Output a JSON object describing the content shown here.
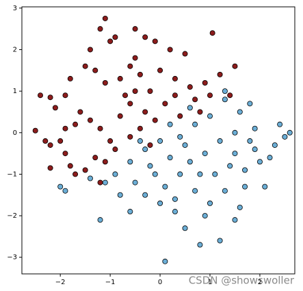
{
  "chart_data": {
    "type": "scatter",
    "xlim": [
      -2.77,
      2.7
    ],
    "ylim": [
      -3.4,
      3.03
    ],
    "xticks": [
      {
        "value": -2,
        "label": "−2"
      },
      {
        "value": -1,
        "label": "−1"
      },
      0,
      1,
      2
    ],
    "yticks": [
      {
        "value": -3,
        "label": "−3"
      },
      {
        "value": -2,
        "label": "−2"
      },
      {
        "value": -1,
        "label": "−1"
      },
      0,
      1,
      2,
      3
    ],
    "annotation": "CSDN @showswoller",
    "series": [
      {
        "color": "#8c1c1c",
        "x": [
          -2.5,
          -2.3,
          -2.2,
          -2.2,
          -2.0,
          -1.9,
          -1.8,
          -1.7,
          -2.1,
          -2.2,
          -1.9,
          -1.8,
          -1.5,
          -1.4,
          -1.2,
          -1.0,
          -0.9,
          -0.5,
          -0.3,
          -0.1,
          1.05,
          -0.5,
          -1.3,
          -1.1,
          -0.8,
          -0.6,
          -0.4,
          -0.2,
          0.0,
          0.3,
          0.6,
          0.9,
          1.2,
          1.5,
          1.4,
          -1.6,
          -1.4,
          -1.2,
          -1.0,
          -0.8,
          -0.6,
          -0.3,
          0.1,
          0.4,
          0.7,
          1.0,
          -1.3,
          -1.1,
          -0.9,
          -0.6,
          -0.4,
          -0.2,
          -1.5,
          -1.2,
          -2.4,
          -1.7,
          -1.9,
          -0.7,
          -0.5,
          -0.1,
          0.5,
          0.2,
          -1.1,
          0.3,
          0.8
        ],
        "values": [
          0.05,
          -0.2,
          -0.3,
          -0.85,
          -0.2,
          -0.5,
          -0.8,
          -1.0,
          0.6,
          0.85,
          0.9,
          1.3,
          1.6,
          2.0,
          2.5,
          2.2,
          2.3,
          2.5,
          2.3,
          2.2,
          2.4,
          1.8,
          1.5,
          1.2,
          1.3,
          1.6,
          1.4,
          1.0,
          1.5,
          1.3,
          1.1,
          1.2,
          1.4,
          1.6,
          0.9,
          0.5,
          0.3,
          0.1,
          -0.2,
          0.4,
          0.7,
          0.5,
          0.7,
          0.4,
          0.8,
          0.9,
          -0.6,
          -0.7,
          -0.4,
          -0.1,
          0.1,
          -0.3,
          -0.9,
          -1.2,
          0.9,
          0.2,
          0.1,
          0.9,
          1.0,
          0.3,
          1.9,
          2.0,
          2.75,
          0.9,
          0.5
        ]
      },
      {
        "color": "#6baed6",
        "x": [
          0.1,
          -1.2,
          0.5,
          0.8,
          1.2,
          1.5,
          0.3,
          0.7,
          1.0,
          1.3,
          1.7,
          2.1,
          -0.6,
          -0.3,
          -0.1,
          0.2,
          0.5,
          0.9,
          1.2,
          1.5,
          1.9,
          2.3,
          2.5,
          2.4,
          1.6,
          1.3,
          1.8,
          0.7,
          0.4,
          0.0,
          -0.3,
          -0.6,
          -0.9,
          -1.1,
          -1.4,
          -1.9,
          -2.0,
          -0.2,
          0.1,
          0.4,
          0.8,
          1.1,
          1.4,
          1.7,
          2.0,
          0.6,
          0.3,
          0.9,
          1.6,
          -0.5,
          -0.8,
          0.0,
          1.0,
          0.6,
          1.5,
          1.9,
          2.2,
          0.2,
          -0.4,
          2.6,
          1.3,
          1.8
        ],
        "values": [
          -3.1,
          -2.1,
          -2.3,
          -2.7,
          -2.6,
          -2.1,
          -1.6,
          -1.4,
          -1.7,
          -1.4,
          -1.3,
          -1.3,
          -1.9,
          -1.5,
          -1.0,
          -0.6,
          -0.3,
          -0.5,
          -0.2,
          -0.5,
          -0.4,
          -0.3,
          -0.1,
          0.2,
          0.5,
          0.8,
          0.7,
          0.2,
          -0.1,
          -0.2,
          -0.4,
          -0.7,
          -1.0,
          -1.2,
          -1.1,
          -1.4,
          -1.3,
          -0.8,
          -1.3,
          -1.0,
          -1.0,
          -1.0,
          -0.8,
          -0.9,
          -0.7,
          -0.7,
          -1.9,
          -2.0,
          -1.8,
          -1.2,
          -1.5,
          -1.7,
          0.4,
          0.6,
          0.0,
          0.1,
          -0.6,
          0.2,
          -0.2,
          0.0,
          1.0,
          -0.2
        ]
      }
    ]
  }
}
